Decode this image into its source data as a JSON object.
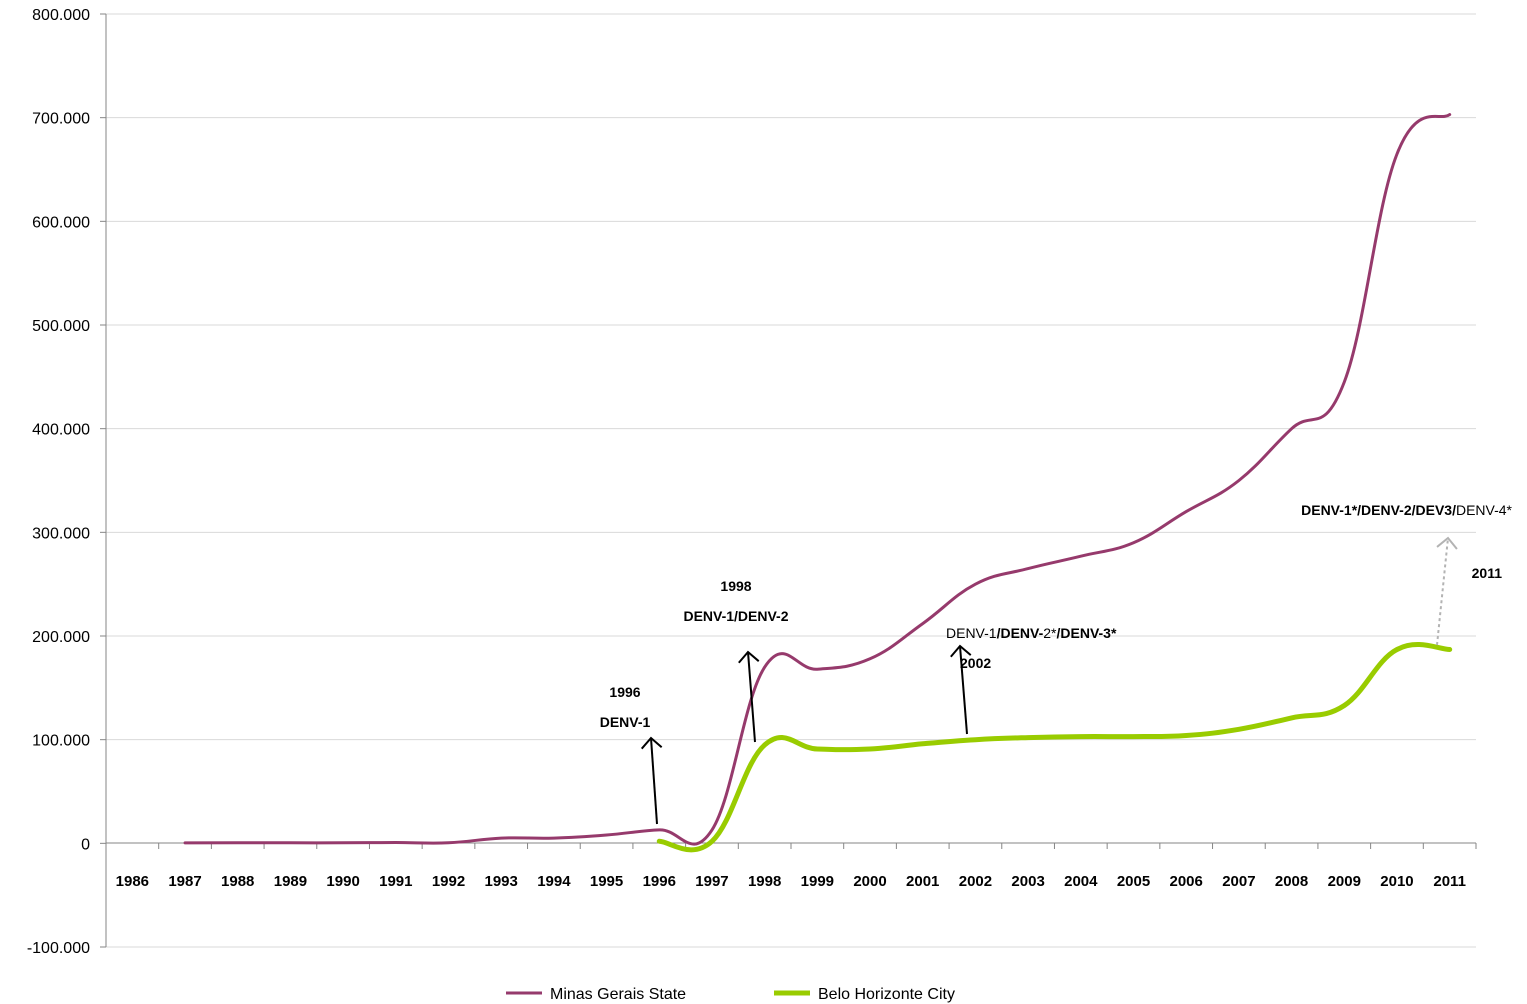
{
  "chart_data": {
    "type": "line",
    "title": "",
    "xlabel": "",
    "ylabel": "",
    "ylim": [
      -100000,
      800000
    ],
    "yticks": [
      {
        "value": 800000,
        "label": "800.000"
      },
      {
        "value": 700000,
        "label": "700.000"
      },
      {
        "value": 600000,
        "label": "600.000"
      },
      {
        "value": 500000,
        "label": "500.000"
      },
      {
        "value": 400000,
        "label": "400.000"
      },
      {
        "value": 300000,
        "label": "300.000"
      },
      {
        "value": 200000,
        "label": "200.000"
      },
      {
        "value": 100000,
        "label": "100.000"
      },
      {
        "value": 0,
        "label": "0"
      },
      {
        "value": -100000,
        "label": "-100.000"
      }
    ],
    "categories": [
      "1986",
      "1987",
      "1988",
      "1989",
      "1990",
      "1991",
      "1992",
      "1993",
      "1994",
      "1995",
      "1996",
      "1997",
      "1998",
      "1999",
      "2000",
      "2001",
      "2002",
      "2003",
      "2004",
      "2005",
      "2006",
      "2007",
      "2008",
      "2009",
      "2010",
      "2011"
    ],
    "grid": true,
    "legend_position": "bottom",
    "series": [
      {
        "name": "Minas Gerais State",
        "color": "#963a6c",
        "values": [
          null,
          500,
          500,
          500,
          500,
          800,
          500,
          5000,
          5000,
          8000,
          13000,
          13000,
          170000,
          168000,
          178000,
          212000,
          250000,
          265000,
          277000,
          290000,
          320000,
          350000,
          400000,
          445000,
          665000,
          703000
        ]
      },
      {
        "name": "Belo Horizonte City",
        "color": "#99cc00",
        "values": [
          null,
          null,
          null,
          null,
          null,
          null,
          null,
          null,
          null,
          null,
          2000,
          2000,
          95000,
          91000,
          91000,
          96000,
          100000,
          102000,
          103000,
          103000,
          104000,
          110000,
          121000,
          133000,
          187000,
          187000
        ]
      }
    ],
    "annotations": [
      {
        "id": "a1996",
        "lines": [
          [
            {
              "text": "1996",
              "bold": true
            }
          ],
          [
            {
              "text": "DENV-1",
              "bold": true
            }
          ]
        ]
      },
      {
        "id": "a1998",
        "lines": [
          [
            {
              "text": "1998",
              "bold": true
            }
          ],
          [
            {
              "text": "DENV-1/DENV-2",
              "bold": true
            }
          ]
        ]
      },
      {
        "id": "a2002",
        "lines": [
          [
            {
              "text": "DENV-1",
              "bold": false
            },
            {
              "text": "/DENV-",
              "bold": true
            },
            {
              "text": "2*",
              "bold": false
            },
            {
              "text": "/DENV-3*",
              "bold": true
            }
          ],
          [
            {
              "text": "2002",
              "bold": true
            }
          ]
        ]
      },
      {
        "id": "a2011",
        "lines": [
          [
            {
              "text": "DENV-1*/DENV-2/DEV3/",
              "bold": true
            },
            {
              "text": "DENV-4*",
              "bold": false
            }
          ],
          [
            {
              "text": "2011",
              "bold": true
            }
          ]
        ]
      }
    ]
  }
}
